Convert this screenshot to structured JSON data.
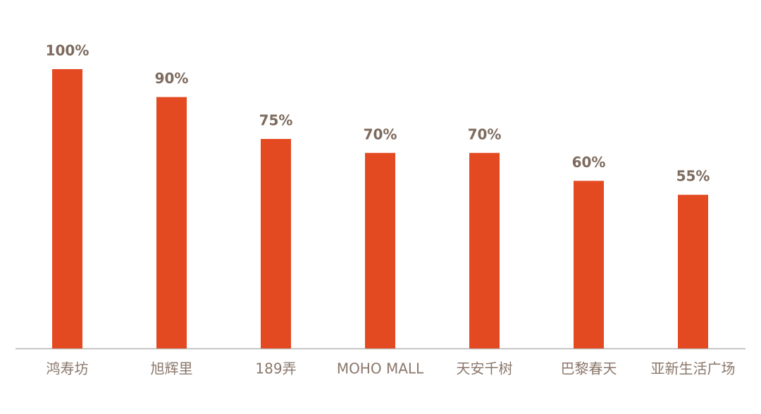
{
  "chart_data": {
    "type": "bar",
    "categories": [
      "鸿寿坊",
      "旭辉里",
      "189弄",
      "MOHO MALL",
      "天安千树",
      "巴黎春天",
      "亚新生活广场"
    ],
    "values": [
      100,
      90,
      75,
      70,
      70,
      60,
      55
    ],
    "value_labels": [
      "100%",
      "90%",
      "75%",
      "70%",
      "70%",
      "60%",
      "55%"
    ],
    "color": "#e34a22",
    "ylim": [
      0,
      100
    ]
  }
}
